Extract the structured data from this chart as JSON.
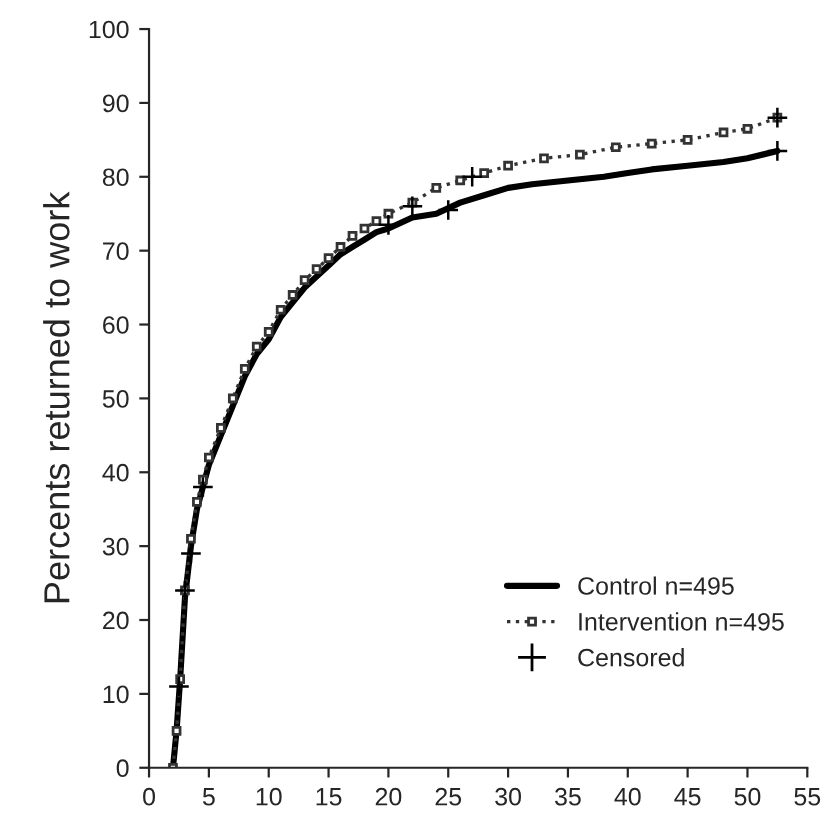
{
  "chart_data": {
    "type": "line",
    "ylabel": "Percents returned to work",
    "xlim": [
      0,
      55
    ],
    "xticks": [
      0,
      5,
      10,
      15,
      20,
      25,
      30,
      35,
      40,
      45,
      50,
      55
    ],
    "ylim": [
      0,
      100
    ],
    "yticks": [
      0,
      10,
      20,
      30,
      40,
      50,
      60,
      70,
      80,
      90,
      100
    ],
    "grid": false,
    "legend": "bottom right",
    "series": [
      {
        "name": "Control n=495",
        "color": "#000000",
        "line_style": "solid",
        "marker": "none",
        "x": [
          2,
          2.3,
          2.6,
          3,
          3.5,
          4,
          4.5,
          5,
          6,
          7,
          8,
          9,
          10,
          11,
          12,
          13,
          14,
          15,
          16,
          17,
          18,
          19,
          20,
          22,
          24,
          26,
          28,
          30,
          32,
          35,
          38,
          40,
          42,
          45,
          48,
          50,
          52.5
        ],
        "values": [
          0,
          5,
          12,
          23,
          30,
          35,
          38,
          41,
          45,
          49,
          53,
          56,
          58,
          61,
          63,
          65,
          66.5,
          68,
          69.5,
          70.5,
          71.5,
          72.5,
          73,
          74.5,
          75,
          76.5,
          77.5,
          78.5,
          79,
          79.5,
          80,
          80.5,
          81,
          81.5,
          82,
          82.5,
          83.5
        ]
      },
      {
        "name": "Intervention n=495",
        "color": "#333333",
        "line_style": "dotted",
        "marker": "square",
        "x": [
          2,
          2.3,
          2.6,
          3,
          3.5,
          4,
          4.5,
          5,
          6,
          7,
          8,
          9,
          10,
          11,
          12,
          13,
          14,
          15,
          16,
          17,
          18,
          19,
          20,
          22,
          24,
          26,
          28,
          30,
          33,
          36,
          39,
          42,
          45,
          48,
          50,
          52.5
        ],
        "values": [
          0,
          5,
          12,
          24,
          31,
          36,
          39,
          42,
          46,
          50,
          54,
          57,
          59,
          62,
          64,
          66,
          67.5,
          69,
          70.5,
          72,
          73,
          74,
          75,
          76.5,
          78.5,
          79.5,
          80.5,
          81.5,
          82.5,
          83,
          84,
          84.5,
          85,
          86,
          86.5,
          88
        ]
      },
      {
        "name": "Censored",
        "type": "scatter",
        "color": "#000000",
        "marker": "cross",
        "x": [
          2.5,
          3,
          3.5,
          4.5,
          20,
          22,
          25,
          27,
          52.5,
          52.5
        ],
        "values": [
          11,
          24,
          29,
          38,
          73.5,
          76,
          75.5,
          80,
          88,
          83.5
        ]
      }
    ]
  }
}
